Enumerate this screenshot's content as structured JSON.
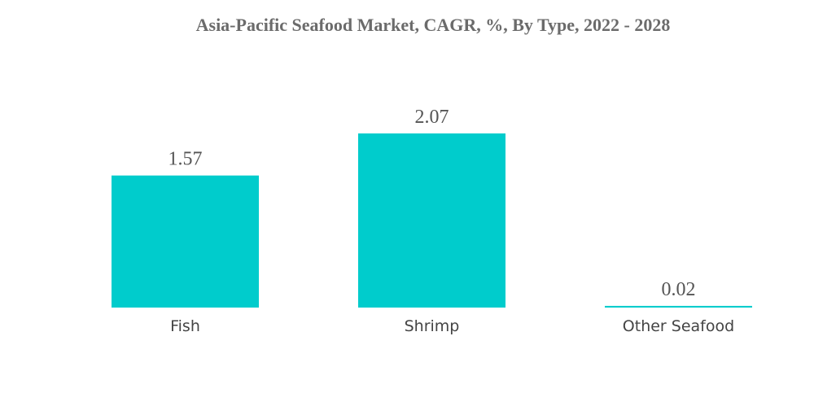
{
  "chart_data": {
    "type": "bar",
    "title": "Asia-Pacific Seafood Market, CAGR, %, By Type, 2022 - 2028",
    "categories": [
      "Fish",
      "Shrimp",
      "Other Seafood"
    ],
    "values": [
      1.57,
      2.07,
      0.02
    ],
    "color": "#00cccc"
  }
}
